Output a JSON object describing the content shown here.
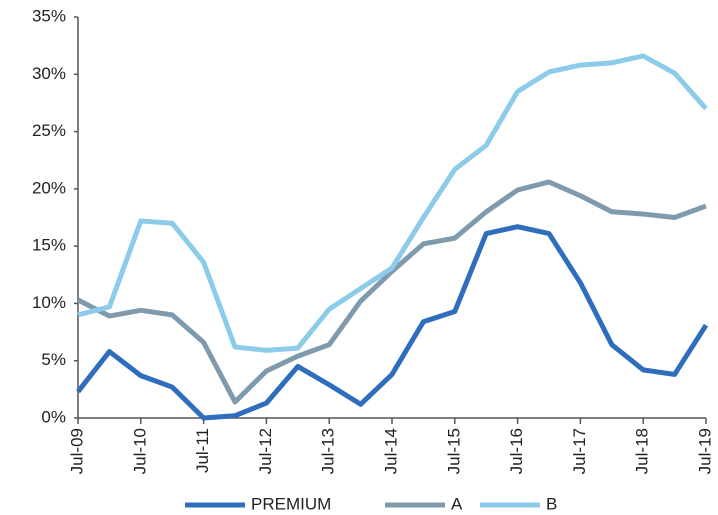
{
  "chart_data": {
    "type": "line",
    "categories": [
      "Jul-09",
      null,
      "Jul-10",
      null,
      "Jul-11",
      null,
      "Jul-12",
      null,
      "Jul-13",
      null,
      "Jul-14",
      null,
      "Jul-15",
      null,
      "Jul-16",
      null,
      "Jul-17",
      null,
      "Jul-18",
      null,
      "Jul-19"
    ],
    "series": [
      {
        "name": "PREMIUM",
        "color": "#2f6dbd",
        "values": [
          2.3,
          5.8,
          3.7,
          2.7,
          0,
          0.2,
          1.3,
          4.5,
          2.9,
          1.2,
          3.8,
          8.4,
          9.3,
          16.1,
          16.7,
          16.1,
          11.8,
          6.4,
          4.2,
          3.8,
          8.1
        ]
      },
      {
        "name": "A",
        "color": "#7f9aad",
        "values": [
          10.3,
          8.9,
          9.4,
          9.0,
          6.6,
          1.4,
          4.1,
          5.4,
          6.4,
          10.2,
          12.8,
          15.2,
          15.7,
          18.0,
          19.9,
          20.6,
          19.4,
          18.0,
          17.8,
          17.5,
          18.5
        ]
      },
      {
        "name": "B",
        "color": "#8ccbea",
        "values": [
          9.0,
          9.7,
          17.2,
          17.0,
          13.6,
          6.2,
          5.9,
          6.1,
          9.5,
          11.3,
          13.1,
          17.5,
          21.7,
          23.8,
          28.5,
          30.2,
          30.8,
          31.0,
          31.6,
          30.1,
          27.0
        ]
      }
    ],
    "ylim": [
      0,
      35
    ],
    "yticks": [
      {
        "value": 0,
        "label": "0%"
      },
      {
        "value": 5,
        "label": "5%"
      },
      {
        "value": 10,
        "label": "10%"
      },
      {
        "value": 15,
        "label": "15%"
      },
      {
        "value": 20,
        "label": "20%"
      },
      {
        "value": 25,
        "label": "25%"
      },
      {
        "value": 30,
        "label": "30%"
      },
      {
        "value": 35,
        "label": "35%"
      }
    ],
    "legend": "bottom"
  }
}
